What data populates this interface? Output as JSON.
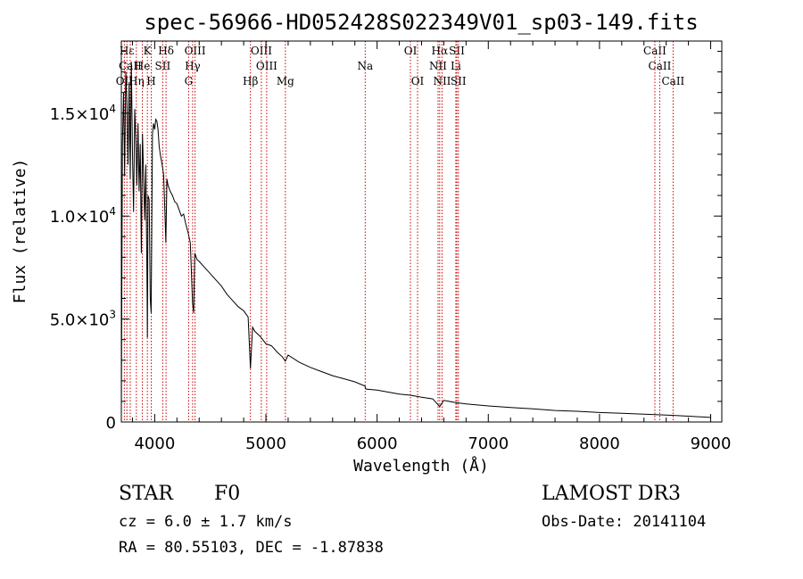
{
  "chart_data": {
    "type": "line",
    "title": "spec-56966-HD052428S022349V01_sp03-149.fits",
    "xlabel": "Wavelength (Å)",
    "ylabel": "Flux (relative)",
    "xlim": [
      3700,
      9100
    ],
    "ylim": [
      0,
      18500
    ],
    "x_ticks": [
      4000,
      5000,
      6000,
      7000,
      8000,
      9000
    ],
    "x_tick_labels": [
      "4000",
      "5000",
      "6000",
      "7000",
      "8000",
      "9000"
    ],
    "y_ticks": [
      0,
      5000,
      10000,
      15000
    ],
    "y_tick_labels": [
      {
        "mantissa": "0",
        "exponent": ""
      },
      {
        "mantissa": "5.0×10",
        "exponent": "3"
      },
      {
        "mantissa": "1.0×10",
        "exponent": "4"
      },
      {
        "mantissa": "1.5×10",
        "exponent": "4"
      }
    ],
    "series": [
      {
        "name": "spectrum",
        "x": [
          3700,
          3710,
          3720,
          3730,
          3740,
          3750,
          3760,
          3770,
          3780,
          3790,
          3800,
          3810,
          3820,
          3830,
          3840,
          3850,
          3860,
          3870,
          3880,
          3890,
          3900,
          3910,
          3920,
          3930,
          3934,
          3940,
          3950,
          3960,
          3968,
          3975,
          3980,
          3990,
          4000,
          4010,
          4020,
          4030,
          4040,
          4050,
          4060,
          4070,
          4080,
          4090,
          4100,
          4110,
          4120,
          4140,
          4160,
          4180,
          4200,
          4220,
          4240,
          4260,
          4280,
          4300,
          4320,
          4340,
          4350,
          4360,
          4380,
          4400,
          4450,
          4500,
          4550,
          4600,
          4650,
          4700,
          4750,
          4800,
          4840,
          4861,
          4880,
          4900,
          4950,
          5000,
          5050,
          5100,
          5150,
          5175,
          5200,
          5300,
          5400,
          5500,
          5600,
          5700,
          5800,
          5890,
          5900,
          6000,
          6100,
          6200,
          6300,
          6400,
          6500,
          6563,
          6600,
          6700,
          6800,
          7000,
          7200,
          7400,
          7600,
          7800,
          8000,
          8200,
          8400,
          8600,
          8800,
          9000
        ],
        "y": [
          300,
          13500,
          16000,
          12000,
          17000,
          15500,
          12500,
          16500,
          11800,
          17500,
          13000,
          10200,
          15200,
          13800,
          11500,
          14500,
          11200,
          13500,
          8200,
          14000,
          12000,
          9800,
          12500,
          7200,
          4100,
          11000,
          10800,
          6000,
          5300,
          10500,
          14000,
          14500,
          14200,
          14700,
          14600,
          14200,
          13400,
          13000,
          12700,
          12400,
          12000,
          10500,
          8700,
          11800,
          11500,
          11200,
          11000,
          10700,
          10600,
          10300,
          10000,
          10100,
          9600,
          9200,
          8700,
          5800,
          5300,
          8200,
          7900,
          7800,
          7500,
          7200,
          6900,
          6600,
          6200,
          5900,
          5600,
          5400,
          5100,
          2600,
          4600,
          4400,
          4150,
          3800,
          3700,
          3400,
          3150,
          2950,
          3250,
          2900,
          2650,
          2450,
          2250,
          2100,
          1950,
          1750,
          1600,
          1550,
          1450,
          1350,
          1300,
          1200,
          1120,
          750,
          1050,
          950,
          880,
          780,
          700,
          640,
          560,
          520,
          460,
          420,
          380,
          340,
          280,
          220
        ]
      }
    ],
    "line_markers": [
      {
        "label": "Hε",
        "x": 3750,
        "row": 1
      },
      {
        "label": "CaII",
        "x": 3780,
        "row": 2
      },
      {
        "label": "OII",
        "x": 3727,
        "row": 3
      },
      {
        "label": "K",
        "x": 3934,
        "row": 1
      },
      {
        "label": "H",
        "x": 3969,
        "row": 3
      },
      {
        "label": "He",
        "x": 3889,
        "row": 2
      },
      {
        "label": "SII",
        "x": 4072,
        "row": 2
      },
      {
        "label": "Hδ",
        "x": 4102,
        "row": 1
      },
      {
        "label": "Hη",
        "x": 3835,
        "row": 3
      },
      {
        "label": "OIII",
        "x": 4363,
        "row": 1
      },
      {
        "label": "Hγ",
        "x": 4341,
        "row": 2
      },
      {
        "label": "G",
        "x": 4305,
        "row": 3
      },
      {
        "label": "OIII",
        "x": 4959,
        "row": 1
      },
      {
        "label": "OIII",
        "x": 5007,
        "row": 2
      },
      {
        "label": "Hβ",
        "x": 4861,
        "row": 3
      },
      {
        "label": "Mg",
        "x": 5175,
        "row": 3
      },
      {
        "label": "Na",
        "x": 5893,
        "row": 2
      },
      {
        "label": "OI",
        "x": 6300,
        "row": 1
      },
      {
        "label": "OI",
        "x": 6364,
        "row": 3
      },
      {
        "label": "Hα",
        "x": 6563,
        "row": 1
      },
      {
        "label": "NII",
        "x": 6548,
        "row": 2
      },
      {
        "label": "NII",
        "x": 6584,
        "row": 3
      },
      {
        "label": "SII",
        "x": 6717,
        "row": 1
      },
      {
        "label": "Li",
        "x": 6708,
        "row": 2
      },
      {
        "label": "SII",
        "x": 6731,
        "row": 3
      },
      {
        "label": "CaII",
        "x": 8498,
        "row": 1
      },
      {
        "label": "CaII",
        "x": 8542,
        "row": 2
      },
      {
        "label": "CaII",
        "x": 8662,
        "row": 3
      }
    ]
  },
  "meta": {
    "object_class": "STAR",
    "subclass": "F0",
    "survey": "LAMOST DR3",
    "cz": "cz = 6.0 ± 1.7 km/s",
    "obs_date": "Obs-Date: 20141104",
    "coords": "RA =  80.55103, DEC =  -1.87838"
  },
  "colors": {
    "axis": "#000000",
    "spectrum": "#000000",
    "marker_line": "#cc0000",
    "background": "#ffffff"
  }
}
